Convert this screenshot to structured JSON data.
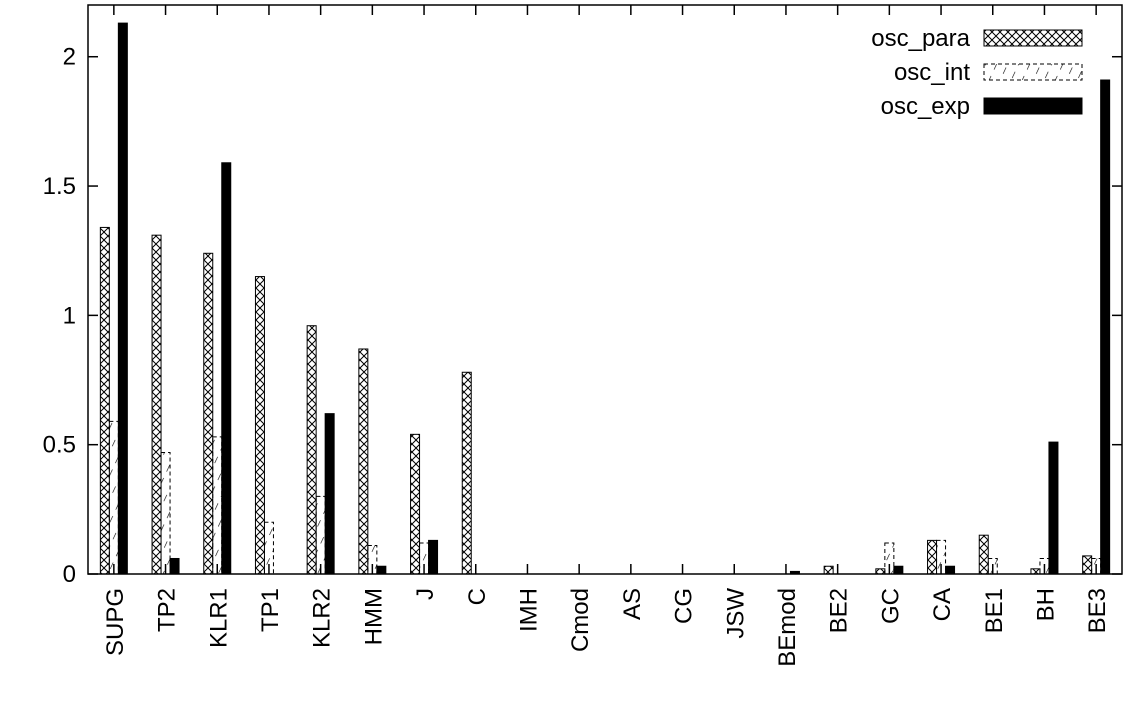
{
  "chart_data": {
    "type": "bar",
    "title": "",
    "xlabel": "",
    "ylabel": "",
    "ylim": [
      0,
      2.2
    ],
    "yticks": [
      0,
      0.5,
      1,
      1.5,
      2
    ],
    "ytick_labels": [
      "0",
      "0.5",
      "1",
      "1.5",
      "2"
    ],
    "grid": false,
    "legend_position": "top-right",
    "categories": [
      "SUPG",
      "TP2",
      "KLR1",
      "TP1",
      "KLR2",
      "HMM",
      "J",
      "C",
      "IMH",
      "Cmod",
      "AS",
      "CG",
      "JSW",
      "BEmod",
      "BE2",
      "GC",
      "CA",
      "BE1",
      "BH",
      "BE3"
    ],
    "series": [
      {
        "name": "osc_para",
        "pattern": "crosshatch",
        "values": [
          1.34,
          1.31,
          1.24,
          1.15,
          0.96,
          0.87,
          0.54,
          0.78,
          0.0,
          0.0,
          0.0,
          0.0,
          0.0,
          0.0,
          0.03,
          0.02,
          0.13,
          0.15,
          0.02,
          0.07
        ]
      },
      {
        "name": "osc_int",
        "pattern": "dashed-diagonal",
        "values": [
          0.59,
          0.47,
          0.53,
          0.2,
          0.3,
          0.11,
          0.12,
          0.0,
          0.0,
          0.0,
          0.0,
          0.0,
          0.0,
          0.0,
          0.0,
          0.12,
          0.13,
          0.06,
          0.06,
          0.06
        ]
      },
      {
        "name": "osc_exp",
        "pattern": "solid",
        "values": [
          2.13,
          0.06,
          1.59,
          0.0,
          0.62,
          0.03,
          0.13,
          0.0,
          0.0,
          0.0,
          0.0,
          0.0,
          0.0,
          0.01,
          0.0,
          0.03,
          0.03,
          0.0,
          0.51,
          1.91
        ]
      }
    ],
    "colors": {
      "axis": "#000000",
      "bar_fill": "#000000",
      "background": "#ffffff"
    }
  }
}
